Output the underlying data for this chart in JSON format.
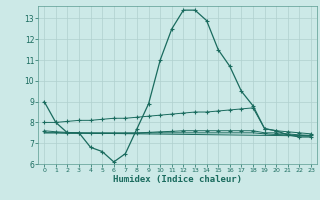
{
  "xlabel": "Humidex (Indice chaleur)",
  "bg_color": "#cce9e7",
  "grid_color": "#b0d0ce",
  "line_color": "#1a6b5e",
  "spine_color": "#5a9a90",
  "xlim": [
    -0.5,
    23.5
  ],
  "ylim": [
    6,
    13.6
  ],
  "yticks": [
    6,
    7,
    8,
    9,
    10,
    11,
    12,
    13
  ],
  "xticks": [
    0,
    1,
    2,
    3,
    4,
    5,
    6,
    7,
    8,
    9,
    10,
    11,
    12,
    13,
    14,
    15,
    16,
    17,
    18,
    19,
    20,
    21,
    22,
    23
  ],
  "line1_x": [
    0,
    1,
    2,
    3,
    4,
    5,
    6,
    7,
    8,
    9,
    10,
    11,
    12,
    13,
    14,
    15,
    16,
    17,
    18,
    19,
    20,
    21,
    22,
    23
  ],
  "line1_y": [
    9.0,
    8.0,
    7.5,
    7.5,
    6.8,
    6.6,
    6.1,
    6.5,
    7.7,
    8.9,
    11.0,
    12.5,
    13.4,
    13.4,
    12.9,
    11.5,
    10.7,
    9.5,
    8.8,
    7.7,
    7.6,
    7.4,
    7.3,
    7.3
  ],
  "line2_x": [
    0,
    1,
    2,
    3,
    4,
    5,
    6,
    7,
    8,
    9,
    10,
    11,
    12,
    13,
    14,
    15,
    16,
    17,
    18,
    19,
    20,
    21,
    22,
    23
  ],
  "line2_y": [
    8.0,
    8.0,
    8.05,
    8.1,
    8.1,
    8.15,
    8.2,
    8.2,
    8.25,
    8.3,
    8.35,
    8.4,
    8.45,
    8.5,
    8.5,
    8.55,
    8.6,
    8.65,
    8.7,
    7.7,
    7.6,
    7.55,
    7.5,
    7.45
  ],
  "line3_x": [
    0,
    1,
    2,
    3,
    4,
    5,
    6,
    7,
    8,
    9,
    10,
    11,
    12,
    13,
    14,
    15,
    16,
    17,
    18,
    19,
    20,
    21,
    22,
    23
  ],
  "line3_y": [
    7.6,
    7.55,
    7.52,
    7.5,
    7.5,
    7.5,
    7.5,
    7.5,
    7.5,
    7.52,
    7.55,
    7.57,
    7.6,
    7.6,
    7.6,
    7.6,
    7.6,
    7.6,
    7.6,
    7.5,
    7.5,
    7.45,
    7.4,
    7.38
  ],
  "line4_x": [
    0,
    1,
    2,
    3,
    4,
    5,
    6,
    7,
    8,
    9,
    10,
    11,
    12,
    13,
    14,
    15,
    16,
    17,
    18,
    19,
    20,
    21,
    22,
    23
  ],
  "line4_y": [
    7.5,
    7.5,
    7.48,
    7.48,
    7.47,
    7.47,
    7.47,
    7.47,
    7.48,
    7.5,
    7.5,
    7.5,
    7.5,
    7.5,
    7.5,
    7.5,
    7.5,
    7.5,
    7.5,
    7.45,
    7.42,
    7.4,
    7.38,
    7.35
  ],
  "line5_x": [
    0,
    1,
    23
  ],
  "line5_y": [
    7.5,
    7.5,
    7.35
  ]
}
